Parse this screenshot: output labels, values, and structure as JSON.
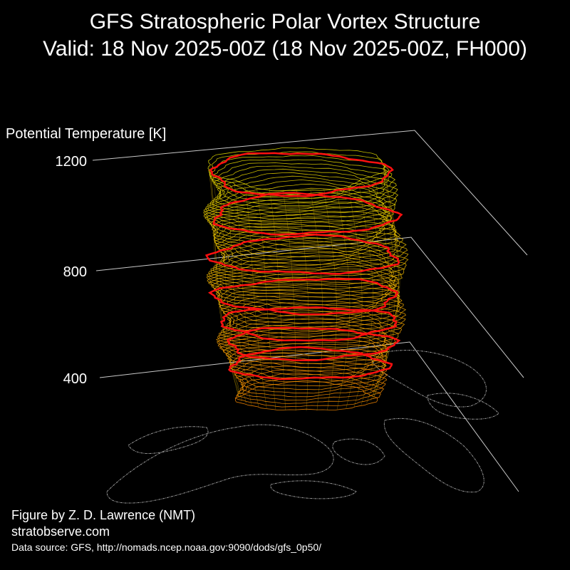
{
  "title": "GFS Stratospheric Polar Vortex Structure",
  "subtitle": "Valid: 18 Nov 2025-00Z  (18 Nov 2025-00Z, FH000)",
  "credits": {
    "author": "Figure by Z. D. Lawrence (NMT)",
    "site": "stratobserve.com",
    "source": "Data source: GFS, http://nomads.ncep.noaa.gov:9090/dods/gfs_0p50/"
  },
  "colors": {
    "background": "#000000",
    "contour_low": "#ff8c00",
    "contour_high": "#e8e000",
    "highlight": "#ff1010",
    "map": "#9a9a9a",
    "axis": "#c8c8c8"
  },
  "chart_data": {
    "type": "3d-isosurface",
    "zlabel": "Potential Temperature [K]",
    "zticks": [
      400,
      800,
      1200
    ],
    "zlim": [
      300,
      1200
    ],
    "highlighted_levels": [
      450,
      525,
      600,
      700,
      850,
      1000,
      1150
    ],
    "grid": true
  }
}
